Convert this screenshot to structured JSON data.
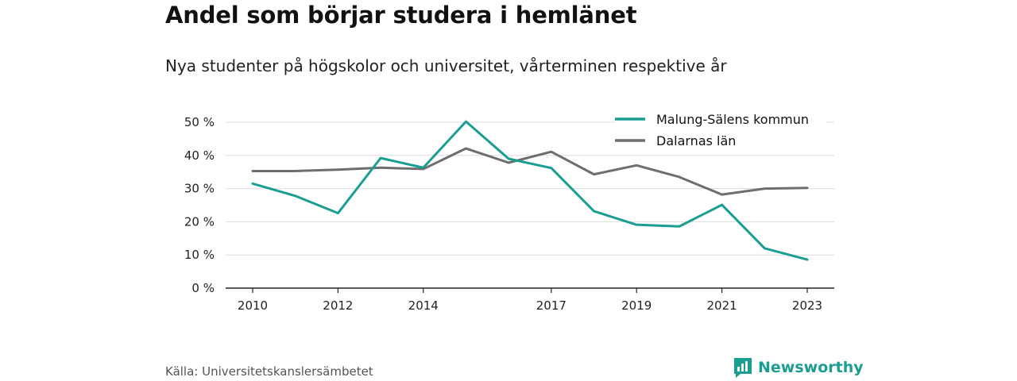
{
  "title": "Andel som börjar studera i hemlänet",
  "subtitle": "Nya studenter på högskolor och universitet, vårterminen respektive år",
  "source": "Källa: Universitetskanslersämbetet",
  "brand": "Newsworthy",
  "chart_data": {
    "type": "line",
    "x": [
      2010,
      2011,
      2012,
      2013,
      2014,
      2015,
      2016,
      2017,
      2018,
      2019,
      2020,
      2021,
      2022,
      2023
    ],
    "x_tick_labels": [
      "2010",
      "2012",
      "2014",
      "2017",
      "2019",
      "2021",
      "2023"
    ],
    "y_tick_labels": [
      "0 %",
      "10 %",
      "20 %",
      "30 %",
      "40 %",
      "50 %"
    ],
    "ylim": [
      0,
      50
    ],
    "grid": true,
    "legend_position": "top-right",
    "series": [
      {
        "name": "Malung-Sälens kommun",
        "color": "#1a9e92",
        "values": [
          31.5,
          27.8,
          22.6,
          39.2,
          36.3,
          50.2,
          39.0,
          36.2,
          23.2,
          19.1,
          18.6,
          25.1,
          12.0,
          8.6
        ]
      },
      {
        "name": "Dalarnas län",
        "color": "#6e6e6e",
        "values": [
          35.3,
          35.3,
          35.7,
          36.3,
          35.9,
          42.1,
          37.8,
          41.1,
          34.3,
          37.0,
          33.5,
          28.2,
          30.0,
          30.2
        ]
      }
    ]
  }
}
